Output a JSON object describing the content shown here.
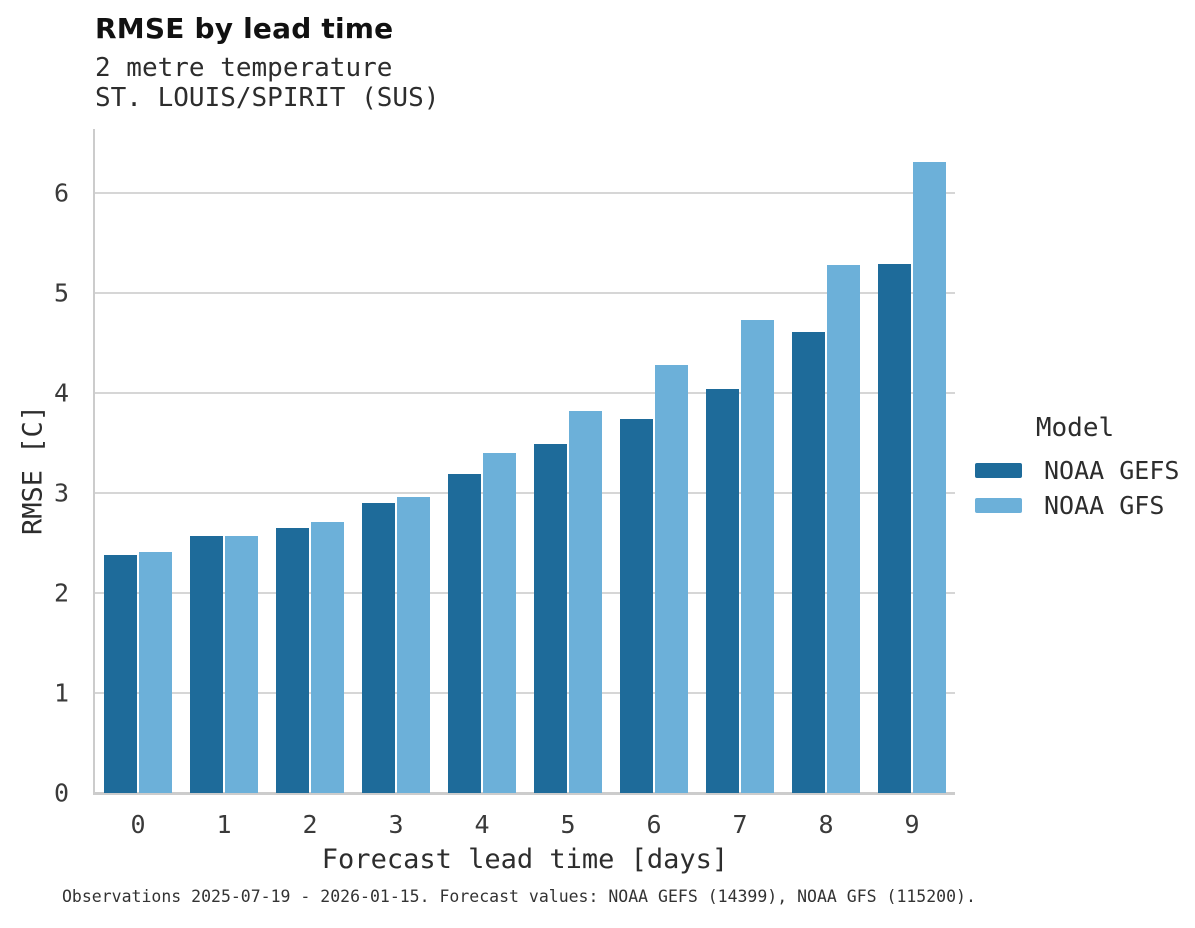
{
  "title": "RMSE by lead time",
  "subtitle_line1": "2 metre temperature",
  "subtitle_line2": "ST. LOUIS/SPIRIT (SUS)",
  "footer": "Observations 2025-07-19 - 2026-01-15. Forecast values: NOAA GEFS (14399), NOAA GFS (115200).",
  "legend": {
    "title": "Model",
    "items": [
      {
        "label": "NOAA GEFS",
        "color": "#1e6b9a"
      },
      {
        "label": "NOAA GFS",
        "color": "#6cb0d9"
      }
    ]
  },
  "colors": {
    "gefs_bar": "#1e6b9a",
    "gfs_bar": "#6cb0d9",
    "gridline": "#d6d6d6",
    "spine": "#cccccc"
  },
  "chart_data": {
    "type": "bar",
    "title": "RMSE by lead time",
    "subtitle": [
      "2 metre temperature",
      "ST. LOUIS/SPIRIT (SUS)"
    ],
    "categories": [
      "0",
      "1",
      "2",
      "3",
      "4",
      "5",
      "6",
      "7",
      "8",
      "9"
    ],
    "series": [
      {
        "name": "NOAA GEFS",
        "color": "#1e6b9a",
        "values": [
          2.38,
          2.57,
          2.65,
          2.9,
          3.19,
          3.49,
          3.74,
          4.04,
          4.61,
          5.29
        ]
      },
      {
        "name": "NOAA GFS",
        "color": "#6cb0d9",
        "values": [
          2.41,
          2.57,
          2.71,
          2.96,
          3.4,
          3.82,
          4.28,
          4.73,
          5.28,
          6.31
        ]
      }
    ],
    "xlabel": "Forecast lead time [days]",
    "ylabel": "RMSE [C]",
    "ylim": [
      0,
      6.64
    ],
    "yticks": [
      0,
      1,
      2,
      3,
      4,
      5,
      6
    ],
    "grid": true,
    "legend_title": "Model",
    "legend_position": "right",
    "footnote": "Observations 2025-07-19 - 2026-01-15. Forecast values: NOAA GEFS (14399), NOAA GFS (115200)."
  }
}
